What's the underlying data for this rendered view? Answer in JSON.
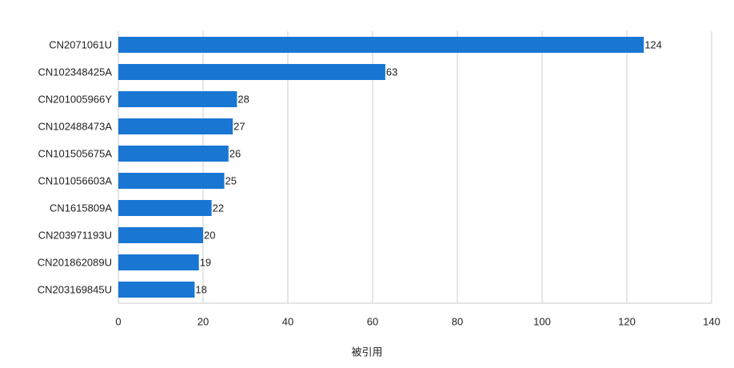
{
  "chart_data": {
    "type": "barh",
    "x_label": "被引用",
    "categories": [
      "CN2071061U",
      "CN102348425A",
      "CN201005966Y",
      "CN102488473A",
      "CN101505675A",
      "CN101056603A",
      "CN1615809A",
      "CN203971193U",
      "CN201862089U",
      "CN203169845U"
    ],
    "values": [
      124,
      63,
      28,
      27,
      26,
      25,
      22,
      20,
      19,
      18
    ],
    "color": "#1976d2",
    "xlim": [
      0,
      140
    ],
    "xticks": [
      0,
      20,
      40,
      60,
      80,
      100,
      120,
      140
    ],
    "grid": true,
    "value_labels_shown": true
  }
}
